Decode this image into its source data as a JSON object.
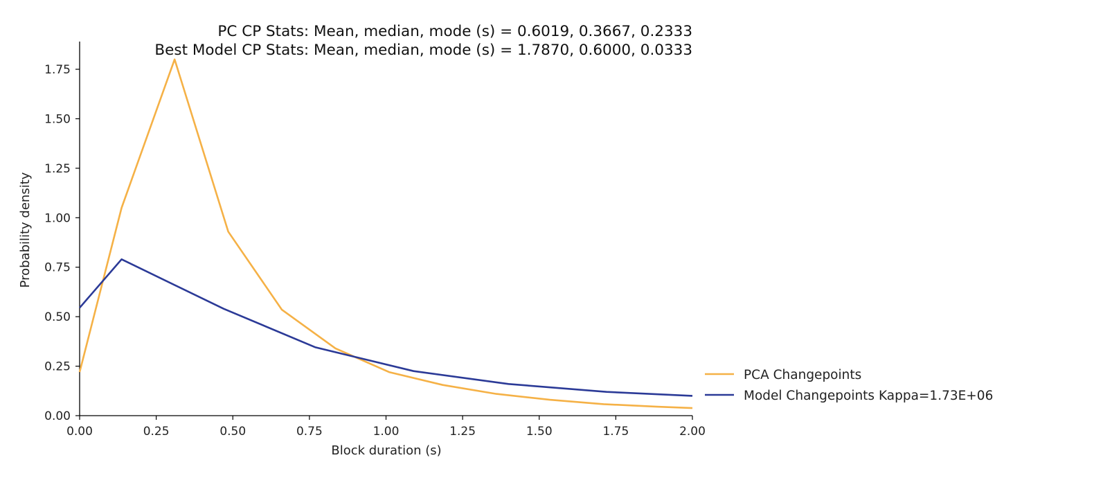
{
  "chart_data": {
    "type": "line",
    "title_lines": [
      "PC CP Stats: Mean, median, mode (s) = 0.6019, 0.3667, 0.2333",
      "Best Model CP Stats: Mean, median, mode (s) = 1.7870, 0.6000, 0.0333"
    ],
    "xlabel": "Block duration (s)",
    "ylabel": "Probability density",
    "xlim": [
      0,
      2
    ],
    "ylim": [
      0,
      1.89
    ],
    "xticks": [
      0,
      0.25,
      0.5,
      0.75,
      1.0,
      1.25,
      1.5,
      1.75,
      2.0
    ],
    "xtick_labels": [
      "0.00",
      "0.25",
      "0.50",
      "0.75",
      "1.00",
      "1.25",
      "1.50",
      "1.75",
      "2.00"
    ],
    "yticks": [
      0,
      0.25,
      0.5,
      0.75,
      1.0,
      1.25,
      1.5,
      1.75
    ],
    "ytick_labels": [
      "0.00",
      "0.25",
      "0.50",
      "0.75",
      "1.00",
      "1.25",
      "1.50",
      "1.75"
    ],
    "grid": false,
    "legend_position": "outside-right-bottom",
    "series": [
      {
        "name": "PCA Changepoints",
        "color": "#f5b146",
        "x": [
          0.0,
          0.137,
          0.31,
          0.485,
          0.66,
          0.835,
          1.01,
          1.185,
          1.36,
          1.535,
          1.71,
          1.885,
          2.0
        ],
        "y": [
          0.22,
          1.05,
          1.8,
          0.93,
          0.535,
          0.34,
          0.22,
          0.155,
          0.11,
          0.08,
          0.058,
          0.045,
          0.038
        ]
      },
      {
        "name": "Model Changepoints Kappa=1.73E+06",
        "color": "#2b3a97",
        "x": [
          0.0,
          0.137,
          0.47,
          0.77,
          1.09,
          1.4,
          1.72,
          2.0
        ],
        "y": [
          0.545,
          0.79,
          0.54,
          0.345,
          0.225,
          0.16,
          0.12,
          0.1
        ]
      }
    ]
  }
}
